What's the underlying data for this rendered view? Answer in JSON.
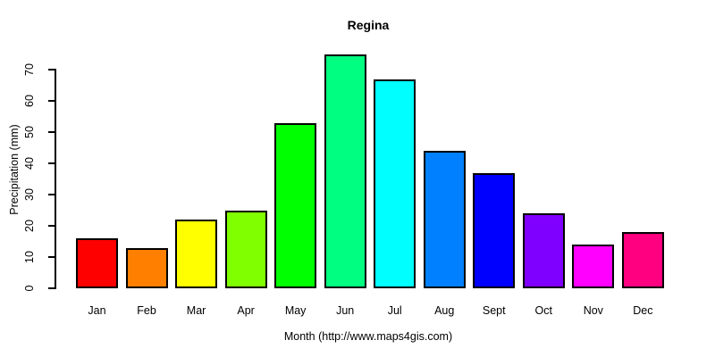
{
  "chart_data": {
    "type": "bar",
    "title": "Regina",
    "xlabel": "Month (http://www.maps4gis.com)",
    "ylabel": "Precipitation (mm)",
    "categories": [
      "Jan",
      "Feb",
      "Mar",
      "Apr",
      "May",
      "Jun",
      "Jul",
      "Aug",
      "Sept",
      "Oct",
      "Nov",
      "Dec"
    ],
    "values": [
      16,
      13,
      22,
      25,
      53,
      75,
      67,
      44,
      37,
      24,
      14,
      18
    ],
    "bar_colors": [
      "#FF0000",
      "#FF8000",
      "#FFFF00",
      "#80FF00",
      "#00FF00",
      "#00FF80",
      "#00FFFF",
      "#0080FF",
      "#0000FF",
      "#8000FF",
      "#FF00FF",
      "#FF0080"
    ],
    "bar_border_color": "#000000",
    "ylim": [
      0,
      70
    ],
    "yticks": [
      0,
      10,
      20,
      30,
      40,
      50,
      60,
      70
    ],
    "grid": false,
    "legend": null,
    "background_color": "#FFFFFF",
    "axis_color": "#000000"
  }
}
